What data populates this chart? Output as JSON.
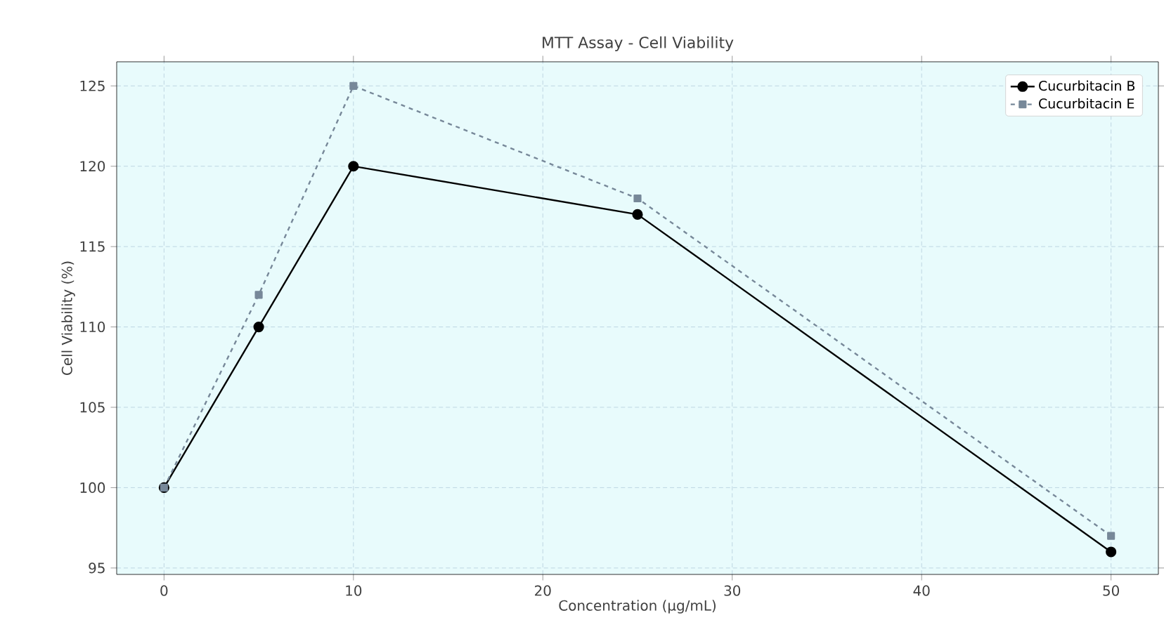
{
  "chart_data": {
    "type": "line",
    "title": "MTT Assay - Cell Viability",
    "xlabel": "Concentration (µg/mL)",
    "ylabel": "Cell Viability (%)",
    "x": [
      0,
      5,
      10,
      25,
      50
    ],
    "series": [
      {
        "name": "Cucurbitacin B",
        "color": "#000000",
        "marker": "circle",
        "line_style": "solid",
        "values": [
          100,
          110,
          120,
          117,
          96
        ]
      },
      {
        "name": "Cucurbitacin E",
        "color": "#778899",
        "marker": "square",
        "line_style": "dashed",
        "values": [
          100,
          112,
          125,
          118,
          97
        ]
      }
    ],
    "xlim": [
      -2.5,
      52.5
    ],
    "ylim": [
      94.6,
      126.5
    ],
    "xticks": [
      0,
      10,
      20,
      30,
      40,
      50
    ],
    "yticks": [
      95,
      100,
      105,
      110,
      115,
      120,
      125
    ],
    "grid": true,
    "legend": "top right"
  }
}
